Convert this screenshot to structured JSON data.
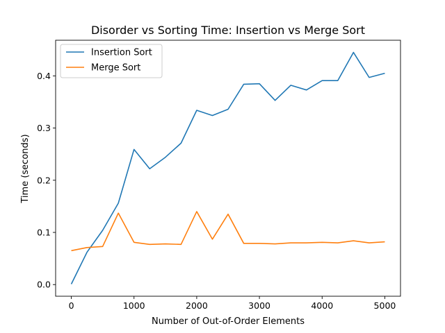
{
  "chart_data": {
    "type": "line",
    "title": "Disorder vs Sorting Time: Insertion vs Merge Sort",
    "xlabel": "Number of Out-of-Order Elements",
    "ylabel": "Time (seconds)",
    "xlim": [
      -250,
      5250
    ],
    "ylim": [
      -0.0223,
      0.4683
    ],
    "xticks": [
      0,
      1000,
      2000,
      3000,
      4000,
      5000
    ],
    "xtick_labels": [
      "0",
      "1000",
      "2000",
      "3000",
      "4000",
      "5000"
    ],
    "yticks": [
      0.0,
      0.1,
      0.2,
      0.3,
      0.4
    ],
    "ytick_labels": [
      "0.0",
      "0.1",
      "0.2",
      "0.3",
      "0.4"
    ],
    "grid": false,
    "legend_position": "top-left",
    "x": [
      0,
      250,
      500,
      750,
      1000,
      1250,
      1500,
      1750,
      2000,
      2250,
      2500,
      2750,
      3000,
      3250,
      3500,
      3750,
      4000,
      4250,
      4500,
      4750,
      5000
    ],
    "series": [
      {
        "name": "Insertion Sort",
        "color": "#1f77b4",
        "values": [
          0.001,
          0.062,
          0.104,
          0.156,
          0.259,
          0.222,
          0.244,
          0.271,
          0.334,
          0.324,
          0.336,
          0.384,
          0.385,
          0.353,
          0.382,
          0.373,
          0.391,
          0.391,
          0.445,
          0.397,
          0.405
        ]
      },
      {
        "name": "Merge Sort",
        "color": "#ff7f0e",
        "values": [
          0.065,
          0.071,
          0.073,
          0.137,
          0.081,
          0.077,
          0.078,
          0.077,
          0.14,
          0.087,
          0.135,
          0.079,
          0.079,
          0.078,
          0.08,
          0.08,
          0.081,
          0.08,
          0.084,
          0.08,
          0.082
        ]
      }
    ]
  }
}
